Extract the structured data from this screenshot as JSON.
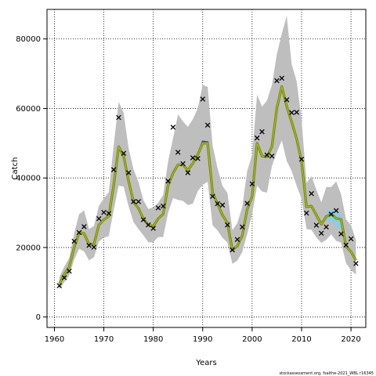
{
  "chart_data": {
    "type": "line",
    "xlabel": "Years",
    "ylabel": "Catch",
    "xlim": [
      1958.5,
      2023
    ],
    "ylim": [
      -3000,
      88500
    ],
    "xticks": [
      1960,
      1970,
      1980,
      1990,
      2000,
      2010,
      2020
    ],
    "yticks": [
      0,
      20000,
      40000,
      60000,
      80000
    ],
    "grid": true,
    "footer": "stockassessment.org, fsaithe-2021_WBL r16345",
    "colors": {
      "band": "#bebebe",
      "estimate": "#808000",
      "highlight": "#9acd32",
      "alt_line": "#3a3ad8",
      "recent_band": "#87ceeb",
      "points": "#000000"
    },
    "observed": {
      "x": [
        1961,
        1962,
        1963,
        1964,
        1965,
        1966,
        1967,
        1968,
        1969,
        1970,
        1971,
        1972,
        1973,
        1974,
        1975,
        1976,
        1977,
        1978,
        1979,
        1980,
        1981,
        1982,
        1983,
        1984,
        1985,
        1986,
        1987,
        1988,
        1989,
        1990,
        1991,
        1992,
        1993,
        1994,
        1995,
        1996,
        1997,
        1998,
        1999,
        2000,
        2001,
        2002,
        2003,
        2004,
        2005,
        2006,
        2007,
        2008,
        2009,
        2010,
        2011,
        2012,
        2013,
        2014,
        2015,
        2016,
        2017,
        2018,
        2019,
        2020,
        2021
      ],
      "y": [
        9000,
        11300,
        13200,
        21800,
        24300,
        26000,
        20600,
        20100,
        28300,
        30100,
        29800,
        42400,
        57400,
        47100,
        41500,
        33200,
        33200,
        28000,
        26500,
        25500,
        31400,
        31900,
        39100,
        54600,
        47400,
        44100,
        41500,
        45800,
        45600,
        62700,
        55200,
        34700,
        32600,
        32200,
        26500,
        19300,
        22300,
        25900,
        32700,
        38300,
        51500,
        53300,
        46600,
        46300,
        68000,
        68700,
        62500,
        58800,
        58900,
        45400,
        29900,
        35500,
        26400,
        24100,
        25900,
        29600,
        30600,
        23900,
        20700,
        22500,
        15400
      ]
    },
    "estimate": {
      "x": [
        1961,
        1962,
        1963,
        1964,
        1965,
        1966,
        1967,
        1968,
        1969,
        1970,
        1971,
        1972,
        1973,
        1974,
        1975,
        1976,
        1977,
        1978,
        1979,
        1980,
        1981,
        1982,
        1983,
        1984,
        1985,
        1986,
        1987,
        1988,
        1989,
        1990,
        1991,
        1992,
        1993,
        1994,
        1995,
        1996,
        1997,
        1998,
        1999,
        2000,
        2001,
        2002,
        2003,
        2004,
        2005,
        2006,
        2007,
        2008,
        2009,
        2010,
        2011,
        2012,
        2013,
        2014,
        2015,
        2016,
        2017,
        2018,
        2019,
        2020,
        2021
      ],
      "y": [
        9500,
        12300,
        14400,
        20000,
        24300,
        24000,
        20900,
        21000,
        26500,
        28000,
        29000,
        37900,
        49000,
        46300,
        39200,
        33100,
        31300,
        28200,
        26500,
        26100,
        28300,
        29600,
        37900,
        41400,
        43800,
        43800,
        42200,
        44200,
        46700,
        50000,
        50000,
        35800,
        32600,
        29300,
        27100,
        19300,
        20400,
        23400,
        31000,
        34700,
        50000,
        46300,
        46100,
        49000,
        60000,
        66300,
        60600,
        56100,
        51300,
        44700,
        31700,
        31900,
        29300,
        26700,
        28900,
        29600,
        28400,
        28100,
        20300,
        18800,
        16300
      ]
    },
    "band_upper": {
      "x": [
        1961,
        1962,
        1963,
        1964,
        1965,
        1966,
        1967,
        1968,
        1969,
        1970,
        1971,
        1972,
        1973,
        1974,
        1975,
        1976,
        1977,
        1978,
        1979,
        1980,
        1981,
        1982,
        1983,
        1984,
        1985,
        1986,
        1987,
        1988,
        1989,
        1990,
        1991,
        1992,
        1993,
        1994,
        1995,
        1996,
        1997,
        1998,
        1999,
        2000,
        2001,
        2002,
        2003,
        2004,
        2005,
        2006,
        2007,
        2008,
        2009,
        2010,
        2011,
        2012,
        2013,
        2014,
        2015,
        2016,
        2017,
        2018,
        2019,
        2020,
        2021
      ],
      "y": [
        11500,
        14500,
        17000,
        24000,
        29600,
        30700,
        25300,
        26200,
        32000,
        34100,
        35900,
        49500,
        61900,
        58800,
        48600,
        42500,
        38900,
        33600,
        31100,
        31500,
        32900,
        35100,
        44800,
        51400,
        58300,
        56300,
        54700,
        56900,
        60000,
        66800,
        66200,
        49400,
        42800,
        37700,
        35700,
        25000,
        27000,
        31700,
        42000,
        46700,
        64000,
        60500,
        62300,
        66700,
        75600,
        81500,
        86600,
        72700,
        67900,
        56800,
        38600,
        40500,
        36600,
        33000,
        37400,
        37400,
        39000,
        35300,
        28100,
        26400,
        22200
      ]
    },
    "band_lower": {
      "x": [
        1961,
        1962,
        1963,
        1964,
        1965,
        1966,
        1967,
        1968,
        1969,
        1970,
        1971,
        1972,
        1973,
        1974,
        1975,
        1976,
        1977,
        1978,
        1979,
        1980,
        1981,
        1982,
        1983,
        1984,
        1985,
        1986,
        1987,
        1988,
        1989,
        1990,
        1991,
        1992,
        1993,
        1994,
        1995,
        1996,
        1997,
        1998,
        1999,
        2000,
        2001,
        2002,
        2003,
        2004,
        2005,
        2006,
        2007,
        2008,
        2009,
        2010,
        2011,
        2012,
        2013,
        2014,
        2015,
        2016,
        2017,
        2018,
        2019,
        2020,
        2021
      ],
      "y": [
        8000,
        10000,
        12000,
        16500,
        19600,
        18900,
        16300,
        17200,
        21700,
        22800,
        23300,
        30800,
        37800,
        37500,
        31900,
        27300,
        25300,
        23500,
        21500,
        21500,
        23000,
        23000,
        30000,
        34200,
        33700,
        33400,
        32200,
        32600,
        36200,
        38000,
        38900,
        26400,
        24900,
        22800,
        21400,
        15300,
        16200,
        18700,
        23800,
        29600,
        37800,
        36100,
        35800,
        43400,
        47400,
        50800,
        44900,
        42000,
        37800,
        34000,
        25300,
        25100,
        22900,
        21300,
        22200,
        23800,
        21900,
        21400,
        15500,
        13500,
        12200
      ]
    },
    "alt_estimate": {
      "x": [
        1988,
        1989,
        1990,
        1991,
        1992
      ],
      "y": [
        44200,
        46700,
        50500,
        50300,
        35800
      ]
    },
    "recent_band": {
      "x": [
        2015,
        2016,
        2017,
        2018,
        2019
      ],
      "upper": [
        30300,
        31000,
        30300,
        29400,
        21500
      ],
      "lower": [
        27800,
        27600,
        26000,
        25300,
        19500
      ]
    }
  }
}
